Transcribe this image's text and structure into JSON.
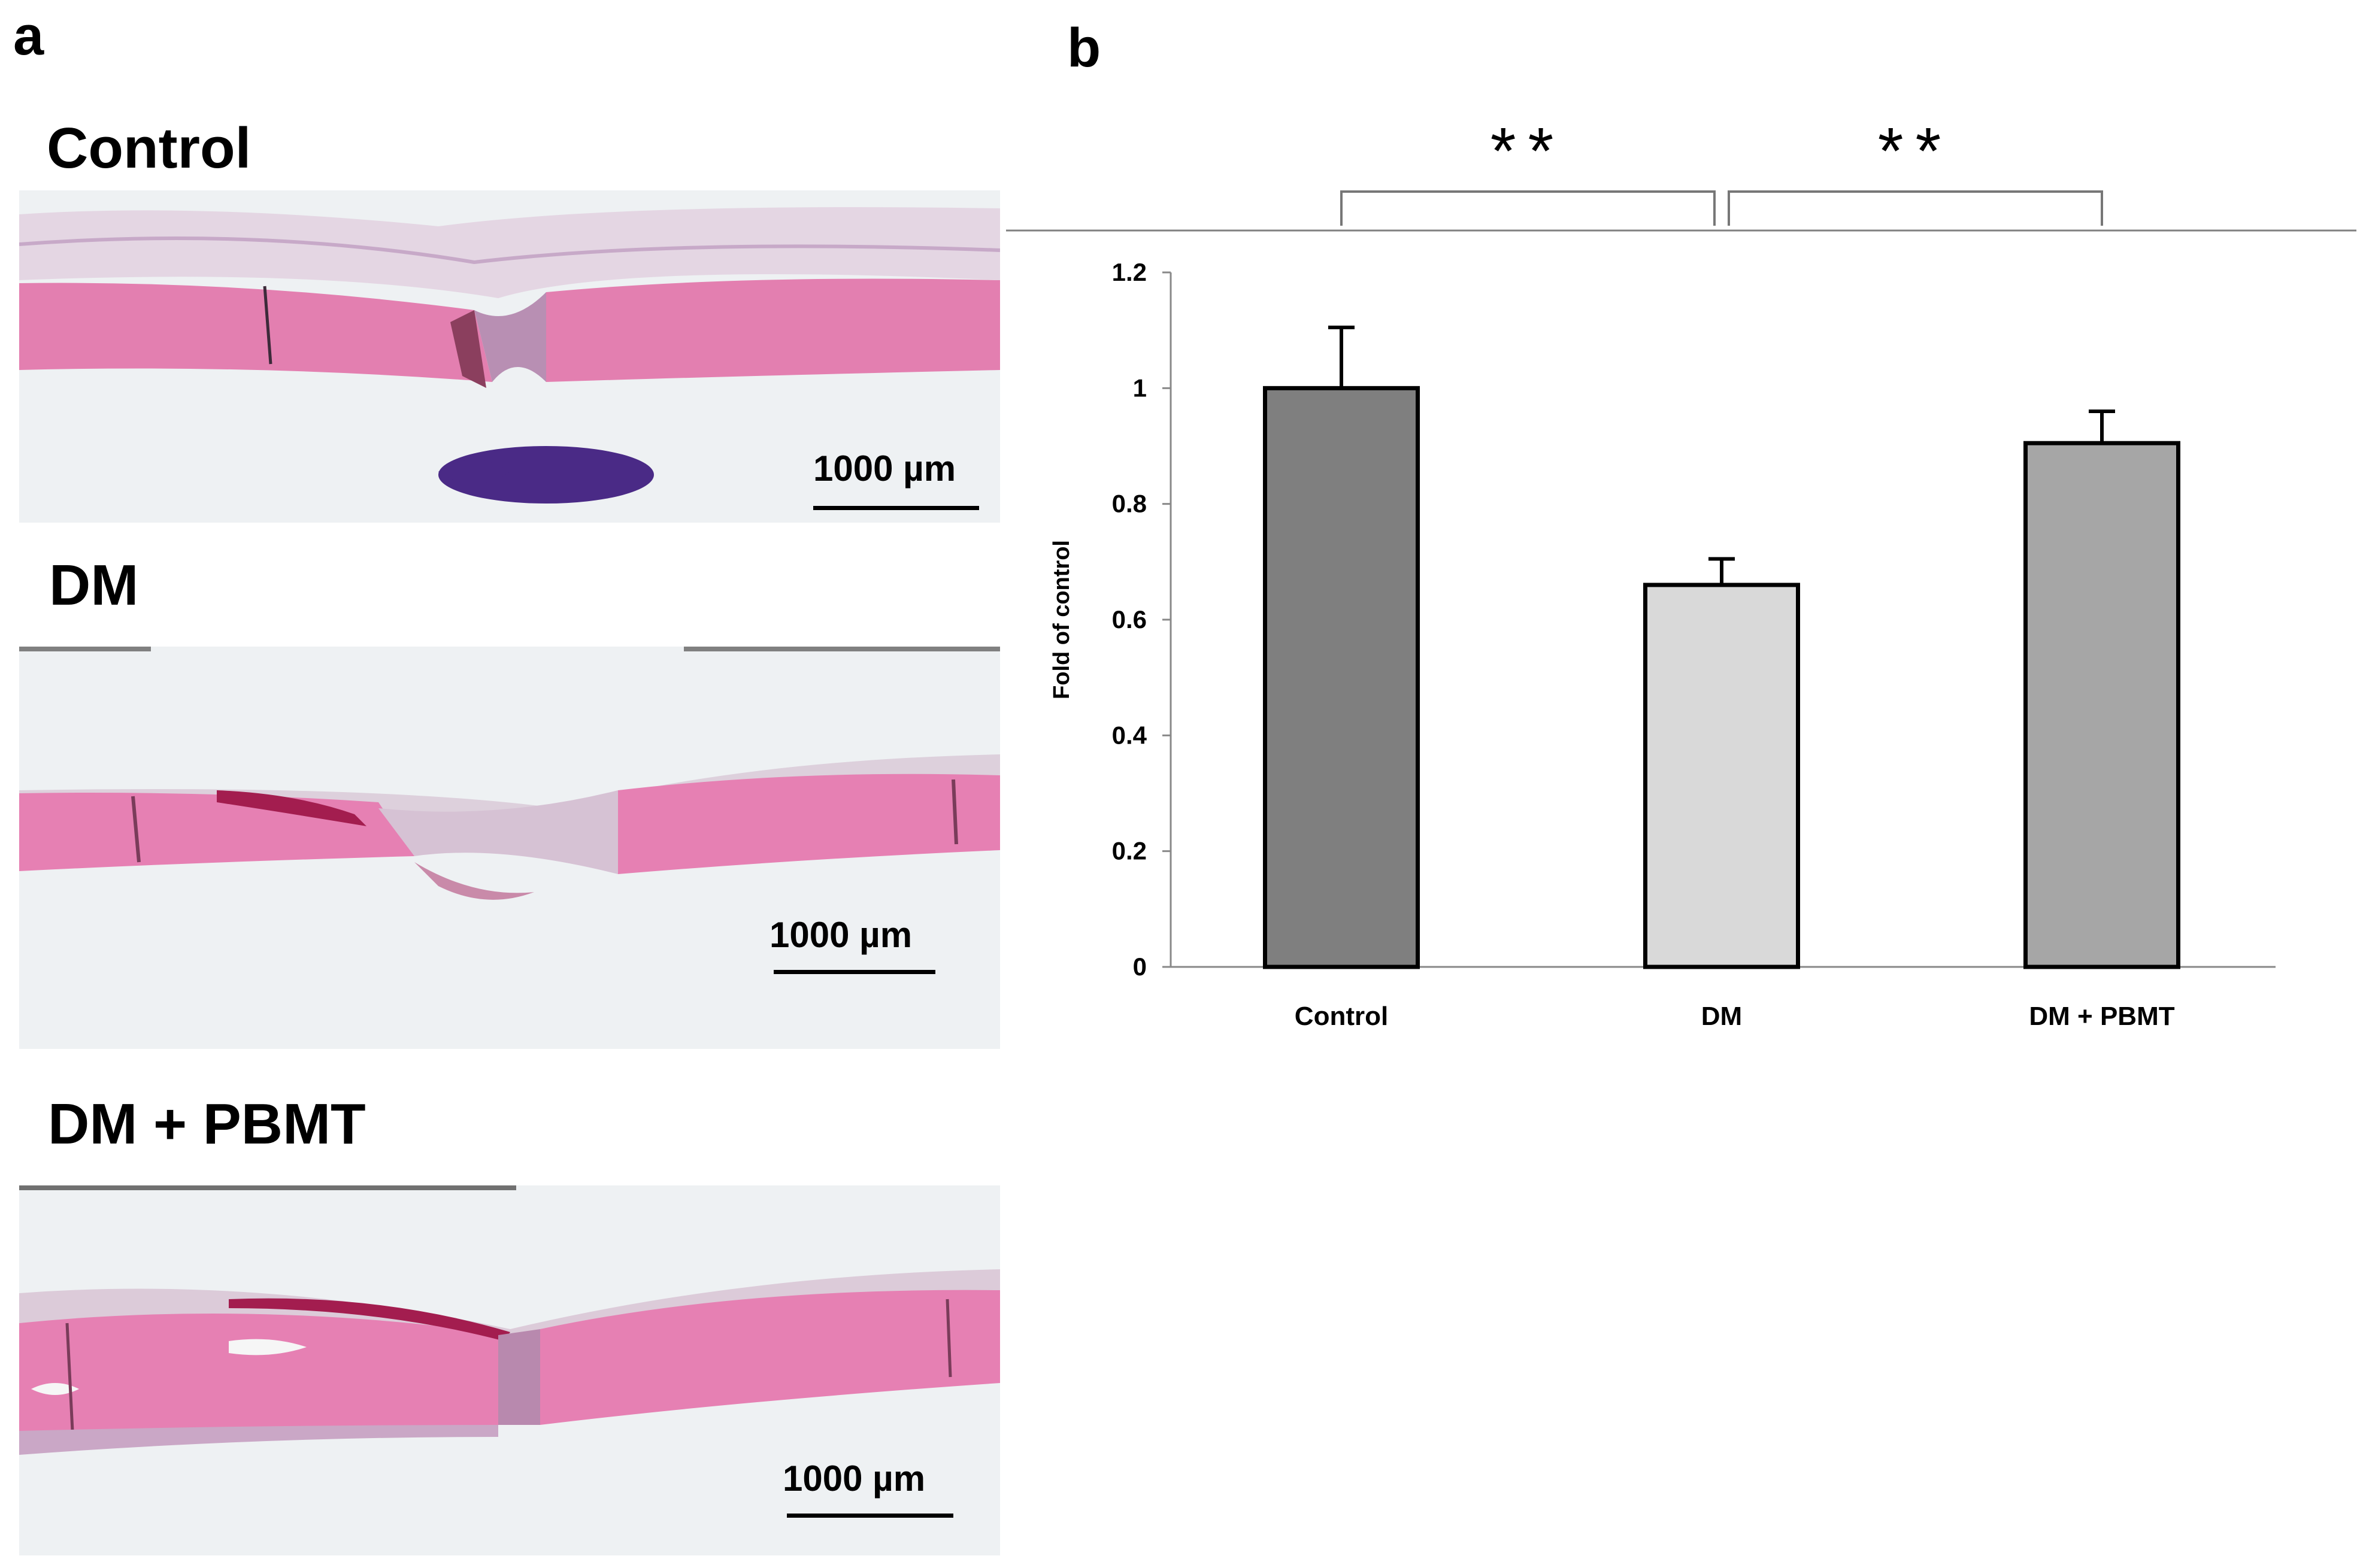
{
  "panel_a": {
    "letter": "a",
    "sections": [
      {
        "title": "Control",
        "scale_label": "1000 µm"
      },
      {
        "title": "DM",
        "scale_label": "1000 µm"
      },
      {
        "title": "DM + PBMT",
        "scale_label": "1000 µm"
      }
    ]
  },
  "panel_b": {
    "letter": "b"
  },
  "chart_data": {
    "type": "bar",
    "categories": [
      "Control",
      "DM",
      "DM + PBMT"
    ],
    "values": [
      1.0,
      0.66,
      0.905
    ],
    "errors": [
      0.105,
      0.045,
      0.055
    ],
    "bar_colors": [
      "#7f7f7f",
      "#d9d9d9",
      "#a6a6a6"
    ],
    "ylabel": "Fold of control",
    "ylim": [
      0,
      1.2
    ],
    "yticks": [
      0,
      0.2,
      0.4,
      0.6,
      0.8,
      1,
      1.2
    ],
    "grid": false,
    "significance": [
      {
        "from": "Control",
        "to": "DM",
        "label": "**"
      },
      {
        "from": "DM",
        "to": "DM + PBMT",
        "label": "**"
      }
    ]
  }
}
